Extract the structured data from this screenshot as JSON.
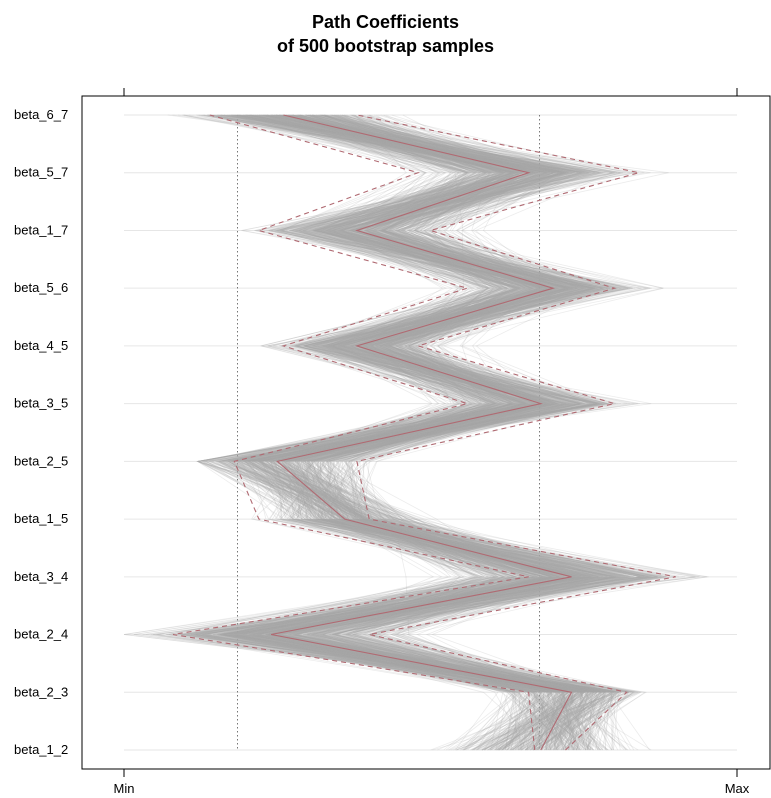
{
  "title_line1": "Path Coefficients",
  "title_line2": "of 500 bootstrap samples",
  "chart_data": {
    "type": "line",
    "title": "Path Coefficients of 500 bootstrap samples",
    "axis_labels": [
      "beta_1_2",
      "beta_2_3",
      "beta_2_4",
      "beta_3_4",
      "beta_1_5",
      "beta_2_5",
      "beta_3_5",
      "beta_4_5",
      "beta_5_6",
      "beta_1_7",
      "beta_5_7",
      "beta_6_7"
    ],
    "x_ticks": [
      "Min",
      "Max"
    ],
    "xlim": [
      0,
      1
    ],
    "reference_lines_x": [
      0.185,
      0.678
    ],
    "series": [
      {
        "role": "original",
        "style": "solid",
        "values": [
          0.68,
          0.73,
          0.24,
          0.73,
          0.36,
          0.25,
          0.68,
          0.38,
          0.7,
          0.38,
          0.66,
          0.26
        ]
      },
      {
        "role": "percentile_2.5",
        "style": "dashed",
        "values": [
          0.67,
          0.66,
          0.08,
          0.66,
          0.22,
          0.18,
          0.56,
          0.26,
          0.56,
          0.22,
          0.48,
          0.14
        ]
      },
      {
        "role": "percentile_97.5",
        "style": "dashed",
        "values": [
          0.72,
          0.82,
          0.4,
          0.9,
          0.4,
          0.38,
          0.8,
          0.48,
          0.8,
          0.5,
          0.84,
          0.38
        ]
      }
    ],
    "bootstrap_range": {
      "min": [
        0.43,
        0.57,
        0.0,
        0.46,
        0.18,
        0.12,
        0.46,
        0.2,
        0.48,
        0.16,
        0.44,
        0.07
      ],
      "max": [
        0.86,
        0.9,
        0.58,
        1.0,
        0.52,
        0.52,
        0.86,
        0.6,
        0.88,
        0.62,
        0.9,
        0.5
      ]
    },
    "n_samples": 500,
    "grid": true
  }
}
